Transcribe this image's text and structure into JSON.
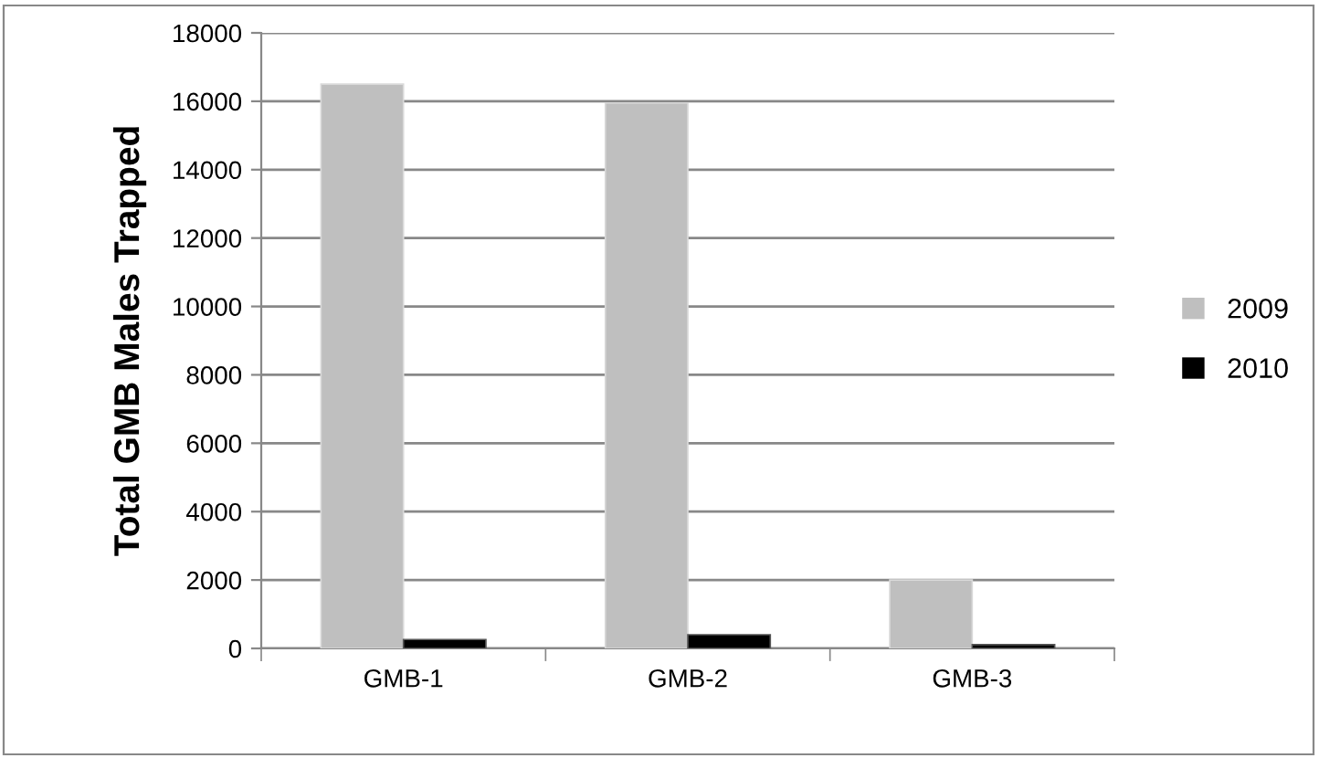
{
  "chart_data": {
    "type": "bar",
    "ylabel": "Total GMB Males Trapped",
    "categories": [
      "GMB-1",
      "GMB-2",
      "GMB-3"
    ],
    "series": [
      {
        "name": "2009",
        "color": "#bfbfbf",
        "values": [
          16500,
          15950,
          2000
        ]
      },
      {
        "name": "2010",
        "color": "#000000",
        "values": [
          260,
          400,
          110
        ]
      }
    ],
    "ylim": [
      0,
      18000
    ],
    "yticks": [
      0,
      2000,
      4000,
      6000,
      8000,
      10000,
      12000,
      14000,
      16000,
      18000
    ],
    "grid": "y",
    "legend": "right"
  }
}
